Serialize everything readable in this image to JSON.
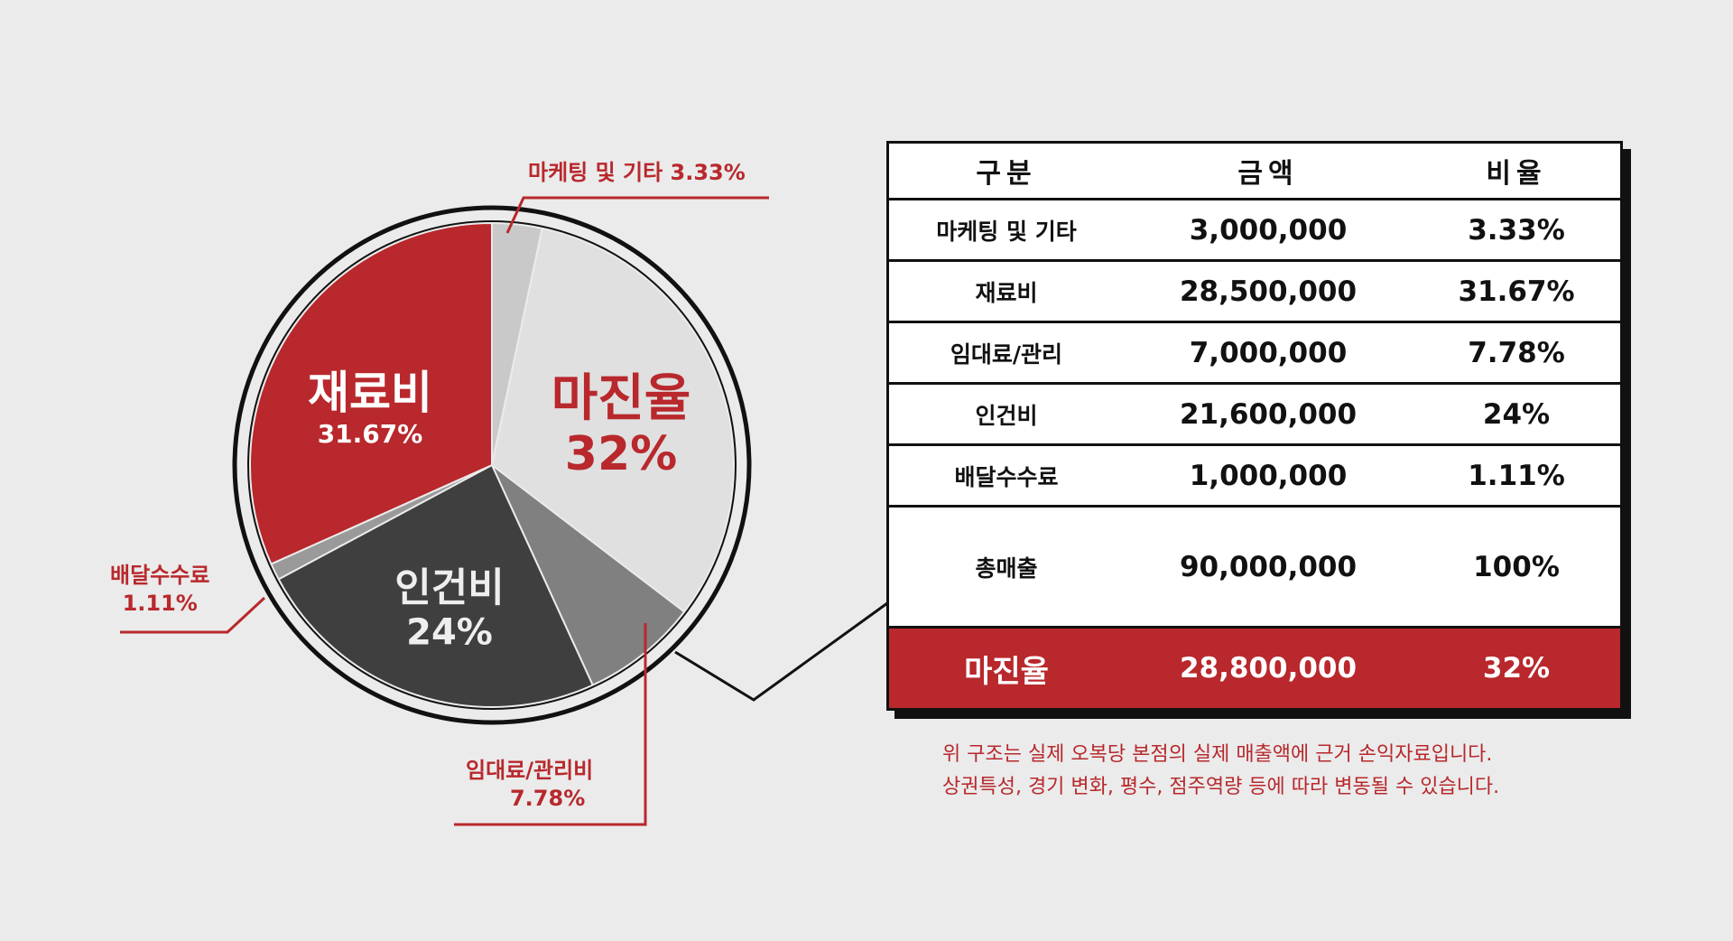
{
  "chart_data": {
    "type": "pie",
    "slices": [
      {
        "key": "marketing",
        "name": "마케팅 및 기타",
        "value": 3.33,
        "color": "#c9c9c9"
      },
      {
        "key": "margin",
        "name": "마진율",
        "value": 32,
        "color": "#e0e0e0"
      },
      {
        "key": "rent",
        "name": "임대료/관리비",
        "value": 7.78,
        "color": "#808080"
      },
      {
        "key": "labor",
        "name": "인건비",
        "value": 24,
        "color": "#3f3f3f"
      },
      {
        "key": "delivery",
        "name": "배달수수료",
        "value": 1.11,
        "color": "#9a9a9a"
      },
      {
        "key": "material",
        "name": "재료비",
        "value": 31.67,
        "color": "#b8282c"
      }
    ]
  },
  "labels": {
    "material": {
      "name": "재료비",
      "pct": "31.67%"
    },
    "margin": {
      "name": "마진율",
      "pct": "32%"
    },
    "labor": {
      "name": "인건비",
      "pct": "24%"
    },
    "marketing": {
      "text": "마케팅 및 기타  3.33%"
    },
    "delivery": {
      "name": "배달수수료",
      "pct": "1.11%"
    },
    "rent": {
      "name": "임대료/관리비",
      "pct": "7.78%"
    }
  },
  "table": {
    "headers": [
      "구분",
      "금액",
      "비율"
    ],
    "rows": [
      {
        "label": "마케팅 및 기타",
        "amount": "3,000,000",
        "ratio": "3.33%"
      },
      {
        "label": "재료비",
        "amount": "28,500,000",
        "ratio": "31.67%"
      },
      {
        "label": "임대료/관리",
        "amount": "7,000,000",
        "ratio": "7.78%"
      },
      {
        "label": "인건비",
        "amount": "21,600,000",
        "ratio": "24%"
      },
      {
        "label": "배달수수료",
        "amount": "1,000,000",
        "ratio": "1.11%"
      }
    ],
    "total": {
      "label": "총매출",
      "amount": "90,000,000",
      "ratio": "100%"
    },
    "margin": {
      "label": "마진율",
      "amount": "28,800,000",
      "ratio": "32%"
    }
  },
  "note": {
    "line1": "위 구조는 실제 오복당 본점의 실제 매출액에 근거 손익자료입니다.",
    "line2": "상권특성, 경기 변화, 평수, 점주역량 등에 따라 변동될 수 있습니다."
  },
  "colors": {
    "accent": "#b8282c",
    "dark": "#111111",
    "background": "#ebebeb"
  }
}
